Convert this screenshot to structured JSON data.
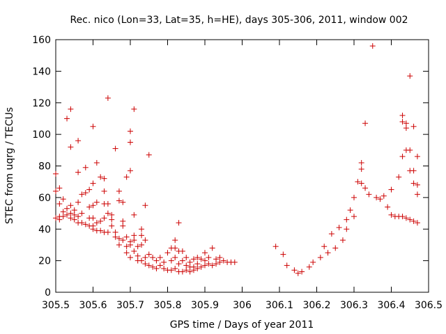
{
  "chart_data": {
    "type": "scatter",
    "title": "Rec. nico (Lon=33, Lat=35, h=HE), days 305-306, 2011, window 002",
    "xlabel": "GPS time / Days of year 2011",
    "ylabel": "STEC from uqrg / TECUs",
    "xlim": [
      305.5,
      306.5
    ],
    "ylim": [
      0,
      160
    ],
    "x_ticks": [
      "305.5",
      "305.6",
      "305.7",
      "305.8",
      "305.9",
      "306",
      "306.1",
      "306.2",
      "306.3",
      "306.4",
      "306.5"
    ],
    "y_ticks": [
      "0",
      "20",
      "40",
      "60",
      "80",
      "100",
      "120",
      "140",
      "160"
    ],
    "marker": "+",
    "marker_color": "#cc0000",
    "grid": false,
    "points": [
      [
        305.5,
        75
      ],
      [
        305.5,
        64
      ],
      [
        305.5,
        47
      ],
      [
        305.51,
        66
      ],
      [
        305.51,
        56
      ],
      [
        305.51,
        48
      ],
      [
        305.51,
        46
      ],
      [
        305.52,
        59
      ],
      [
        305.52,
        51
      ],
      [
        305.52,
        48
      ],
      [
        305.53,
        110
      ],
      [
        305.53,
        53
      ],
      [
        305.53,
        49
      ],
      [
        305.54,
        116
      ],
      [
        305.54,
        92
      ],
      [
        305.54,
        55
      ],
      [
        305.54,
        50
      ],
      [
        305.54,
        47
      ],
      [
        305.55,
        52
      ],
      [
        305.55,
        49
      ],
      [
        305.55,
        46
      ],
      [
        305.56,
        96
      ],
      [
        305.56,
        76
      ],
      [
        305.56,
        57
      ],
      [
        305.56,
        48
      ],
      [
        305.56,
        44
      ],
      [
        305.57,
        62
      ],
      [
        305.57,
        50
      ],
      [
        305.57,
        44
      ],
      [
        305.58,
        79
      ],
      [
        305.58,
        63
      ],
      [
        305.58,
        43
      ],
      [
        305.59,
        65
      ],
      [
        305.59,
        54
      ],
      [
        305.59,
        47
      ],
      [
        305.59,
        42
      ],
      [
        305.6,
        105
      ],
      [
        305.6,
        69
      ],
      [
        305.6,
        55
      ],
      [
        305.6,
        47
      ],
      [
        305.6,
        42
      ],
      [
        305.6,
        40
      ],
      [
        305.61,
        82
      ],
      [
        305.61,
        57
      ],
      [
        305.61,
        44
      ],
      [
        305.61,
        39
      ],
      [
        305.62,
        73
      ],
      [
        305.62,
        45
      ],
      [
        305.62,
        39
      ],
      [
        305.63,
        72
      ],
      [
        305.63,
        64
      ],
      [
        305.63,
        56
      ],
      [
        305.63,
        47
      ],
      [
        305.63,
        38
      ],
      [
        305.64,
        123
      ],
      [
        305.64,
        56
      ],
      [
        305.64,
        50
      ],
      [
        305.64,
        38
      ],
      [
        305.65,
        49
      ],
      [
        305.65,
        46
      ],
      [
        305.65,
        42
      ],
      [
        305.66,
        91
      ],
      [
        305.66,
        38
      ],
      [
        305.66,
        35
      ],
      [
        305.67,
        64
      ],
      [
        305.67,
        58
      ],
      [
        305.67,
        34
      ],
      [
        305.67,
        30
      ],
      [
        305.68,
        57
      ],
      [
        305.68,
        45
      ],
      [
        305.68,
        42
      ],
      [
        305.68,
        33
      ],
      [
        305.69,
        73
      ],
      [
        305.69,
        35
      ],
      [
        305.69,
        29
      ],
      [
        305.69,
        25
      ],
      [
        305.7,
        102
      ],
      [
        305.7,
        95
      ],
      [
        305.7,
        77
      ],
      [
        305.7,
        32
      ],
      [
        305.7,
        30
      ],
      [
        305.7,
        22
      ],
      [
        305.71,
        116
      ],
      [
        305.71,
        49
      ],
      [
        305.71,
        36
      ],
      [
        305.71,
        33
      ],
      [
        305.71,
        26
      ],
      [
        305.72,
        29
      ],
      [
        305.72,
        23
      ],
      [
        305.72,
        20
      ],
      [
        305.73,
        40
      ],
      [
        305.73,
        36
      ],
      [
        305.73,
        30
      ],
      [
        305.73,
        20
      ],
      [
        305.74,
        55
      ],
      [
        305.74,
        33
      ],
      [
        305.74,
        22
      ],
      [
        305.74,
        18
      ],
      [
        305.75,
        87
      ],
      [
        305.75,
        24
      ],
      [
        305.75,
        17
      ],
      [
        305.76,
        22
      ],
      [
        305.76,
        16
      ],
      [
        305.77,
        20
      ],
      [
        305.77,
        15
      ],
      [
        305.78,
        22
      ],
      [
        305.78,
        17
      ],
      [
        305.79,
        19
      ],
      [
        305.79,
        15
      ],
      [
        305.8,
        25
      ],
      [
        305.8,
        14
      ],
      [
        305.81,
        28
      ],
      [
        305.81,
        20
      ],
      [
        305.81,
        14
      ],
      [
        305.82,
        33
      ],
      [
        305.82,
        28
      ],
      [
        305.82,
        22
      ],
      [
        305.82,
        15
      ],
      [
        305.83,
        44
      ],
      [
        305.83,
        26
      ],
      [
        305.83,
        18
      ],
      [
        305.83,
        13
      ],
      [
        305.84,
        26
      ],
      [
        305.84,
        20
      ],
      [
        305.84,
        13
      ],
      [
        305.85,
        22
      ],
      [
        305.85,
        17
      ],
      [
        305.85,
        14
      ],
      [
        305.86,
        19
      ],
      [
        305.86,
        16
      ],
      [
        305.86,
        13
      ],
      [
        305.87,
        21
      ],
      [
        305.87,
        16
      ],
      [
        305.87,
        14
      ],
      [
        305.88,
        22
      ],
      [
        305.88,
        18
      ],
      [
        305.88,
        15
      ],
      [
        305.89,
        21
      ],
      [
        305.89,
        16
      ],
      [
        305.9,
        25
      ],
      [
        305.9,
        20
      ],
      [
        305.9,
        17
      ],
      [
        305.91,
        22
      ],
      [
        305.91,
        18
      ],
      [
        305.92,
        28
      ],
      [
        305.92,
        17
      ],
      [
        305.93,
        21
      ],
      [
        305.93,
        18
      ],
      [
        305.94,
        22
      ],
      [
        305.94,
        19
      ],
      [
        305.95,
        20
      ],
      [
        305.96,
        19
      ],
      [
        305.97,
        19
      ],
      [
        305.98,
        19
      ],
      [
        306.09,
        29
      ],
      [
        306.11,
        24
      ],
      [
        306.12,
        17
      ],
      [
        306.14,
        14
      ],
      [
        306.15,
        12
      ],
      [
        306.16,
        13
      ],
      [
        306.18,
        16
      ],
      [
        306.19,
        19
      ],
      [
        306.21,
        22
      ],
      [
        306.22,
        29
      ],
      [
        306.23,
        25
      ],
      [
        306.24,
        37
      ],
      [
        306.25,
        28
      ],
      [
        306.26,
        41
      ],
      [
        306.27,
        33
      ],
      [
        306.28,
        46
      ],
      [
        306.28,
        40
      ],
      [
        306.29,
        52
      ],
      [
        306.3,
        60
      ],
      [
        306.3,
        48
      ],
      [
        306.31,
        70
      ],
      [
        306.32,
        82
      ],
      [
        306.32,
        78
      ],
      [
        306.32,
        69
      ],
      [
        306.33,
        107
      ],
      [
        306.33,
        66
      ],
      [
        306.34,
        62
      ],
      [
        306.35,
        156
      ],
      [
        306.36,
        60
      ],
      [
        306.37,
        59
      ],
      [
        306.38,
        61
      ],
      [
        306.39,
        54
      ],
      [
        306.4,
        65
      ],
      [
        306.4,
        49
      ],
      [
        306.41,
        48
      ],
      [
        306.42,
        73
      ],
      [
        306.42,
        48
      ],
      [
        306.43,
        112
      ],
      [
        306.43,
        108
      ],
      [
        306.43,
        86
      ],
      [
        306.43,
        48
      ],
      [
        306.44,
        107
      ],
      [
        306.44,
        104
      ],
      [
        306.44,
        90
      ],
      [
        306.44,
        47
      ],
      [
        306.45,
        137
      ],
      [
        306.45,
        90
      ],
      [
        306.45,
        77
      ],
      [
        306.45,
        46
      ],
      [
        306.46,
        105
      ],
      [
        306.46,
        77
      ],
      [
        306.46,
        69
      ],
      [
        306.46,
        45
      ],
      [
        306.47,
        86
      ],
      [
        306.47,
        68
      ],
      [
        306.47,
        62
      ],
      [
        306.47,
        44
      ]
    ]
  }
}
